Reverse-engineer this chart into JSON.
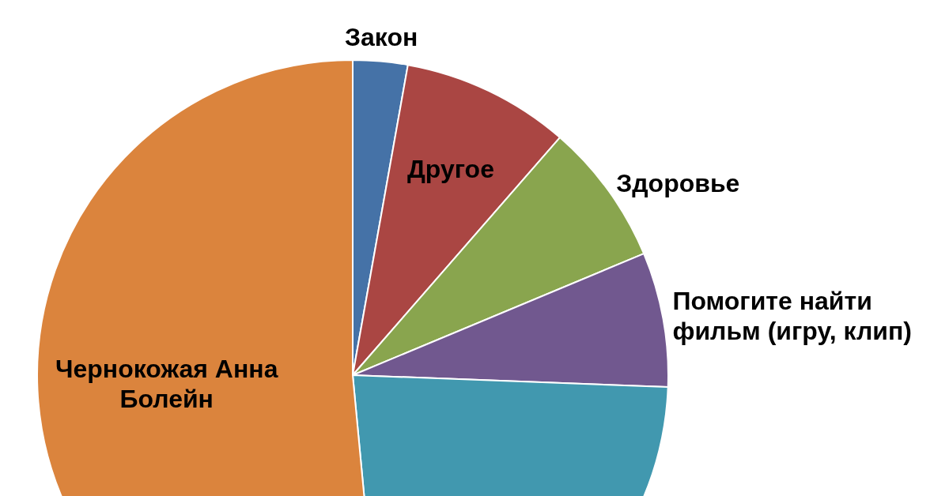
{
  "chart_data": {
    "type": "pie",
    "categories": [
      "Закон",
      "Другое",
      "Здоровье",
      "Помогите найти фильм (игру, клип)",
      null,
      "Чернокожая Анна Болейн"
    ],
    "values": [
      2.8,
      8.6,
      7.3,
      6.9,
      22.9,
      51.5
    ],
    "colors": [
      "#4572a7",
      "#aa4643",
      "#89a54e",
      "#71588f",
      "#4198af",
      "#db843d"
    ],
    "legend": false
  }
}
